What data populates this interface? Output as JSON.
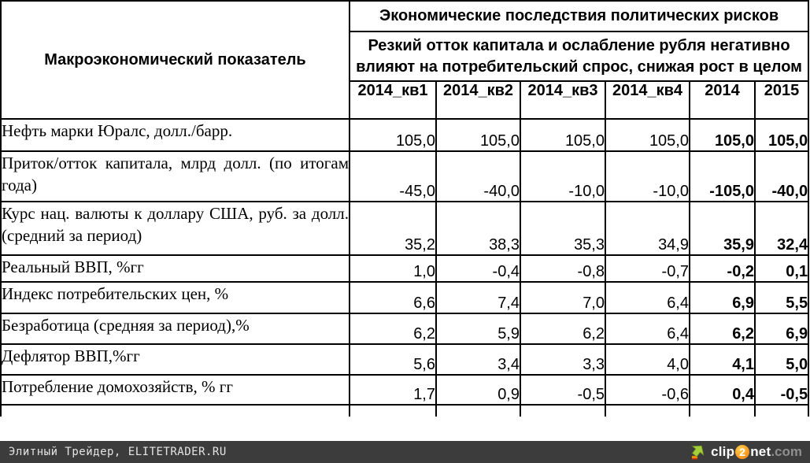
{
  "table": {
    "corner_header": "Макроэкономический показатель",
    "title": "Экономические последствия политических рисков",
    "subtitle": "Резкий отток капитала и ослабление рубля негативно влияют на потребительский спрос, снижая рост в целом",
    "columns": [
      "2014_кв1",
      "2014_кв2",
      "2014_кв3",
      "2014_кв4",
      "2014",
      "2015"
    ],
    "rows": [
      {
        "label": "Нефть марки Юралс, долл./барр.",
        "values": [
          "105,0",
          "105,0",
          "105,0",
          "105,0",
          "105,0",
          "105,0"
        ]
      },
      {
        "label": "Приток/отток капитала, млрд долл. (по итогам года)",
        "values": [
          "-45,0",
          "-40,0",
          "-10,0",
          "-10,0",
          "-105,0",
          "-40,0"
        ]
      },
      {
        "label": "Курс нац. валюты к доллару США, руб. за долл. (средний за период)",
        "values": [
          "35,2",
          "38,3",
          "35,3",
          "34,9",
          "35,9",
          "32,4"
        ]
      },
      {
        "label": "Реальный ВВП, %гг",
        "values": [
          "1,0",
          "-0,4",
          "-0,8",
          "-0,7",
          "-0,2",
          "0,1"
        ]
      },
      {
        "label": "Индекс потребительских цен, %",
        "values": [
          "6,6",
          "7,4",
          "7,0",
          "6,4",
          "6,9",
          "5,5"
        ]
      },
      {
        "label": "Безработица (средняя за период),%",
        "values": [
          "6,2",
          "5,9",
          "6,2",
          "6,4",
          "6,2",
          "6,9"
        ]
      },
      {
        "label": "Дефлятор ВВП,%гг",
        "values": [
          "5,6",
          "3,4",
          "3,3",
          "4,0",
          "4,1",
          "5,0"
        ]
      },
      {
        "label": "Потребление домохозяйств, % гг",
        "values": [
          "1,7",
          "0,9",
          "-0,5",
          "-0,6",
          "0,4",
          "-0,5"
        ]
      }
    ]
  },
  "footer": {
    "source": "Элитный Трейдер, ELITETRADER.RU",
    "logo": {
      "clip": "clip",
      "two": "2",
      "net": "net",
      "dotcom": ".com"
    },
    "colors": {
      "bar": "#3c3c3c",
      "arrow_green": "#a6ce39",
      "badge_orange": "#f6921e"
    }
  }
}
